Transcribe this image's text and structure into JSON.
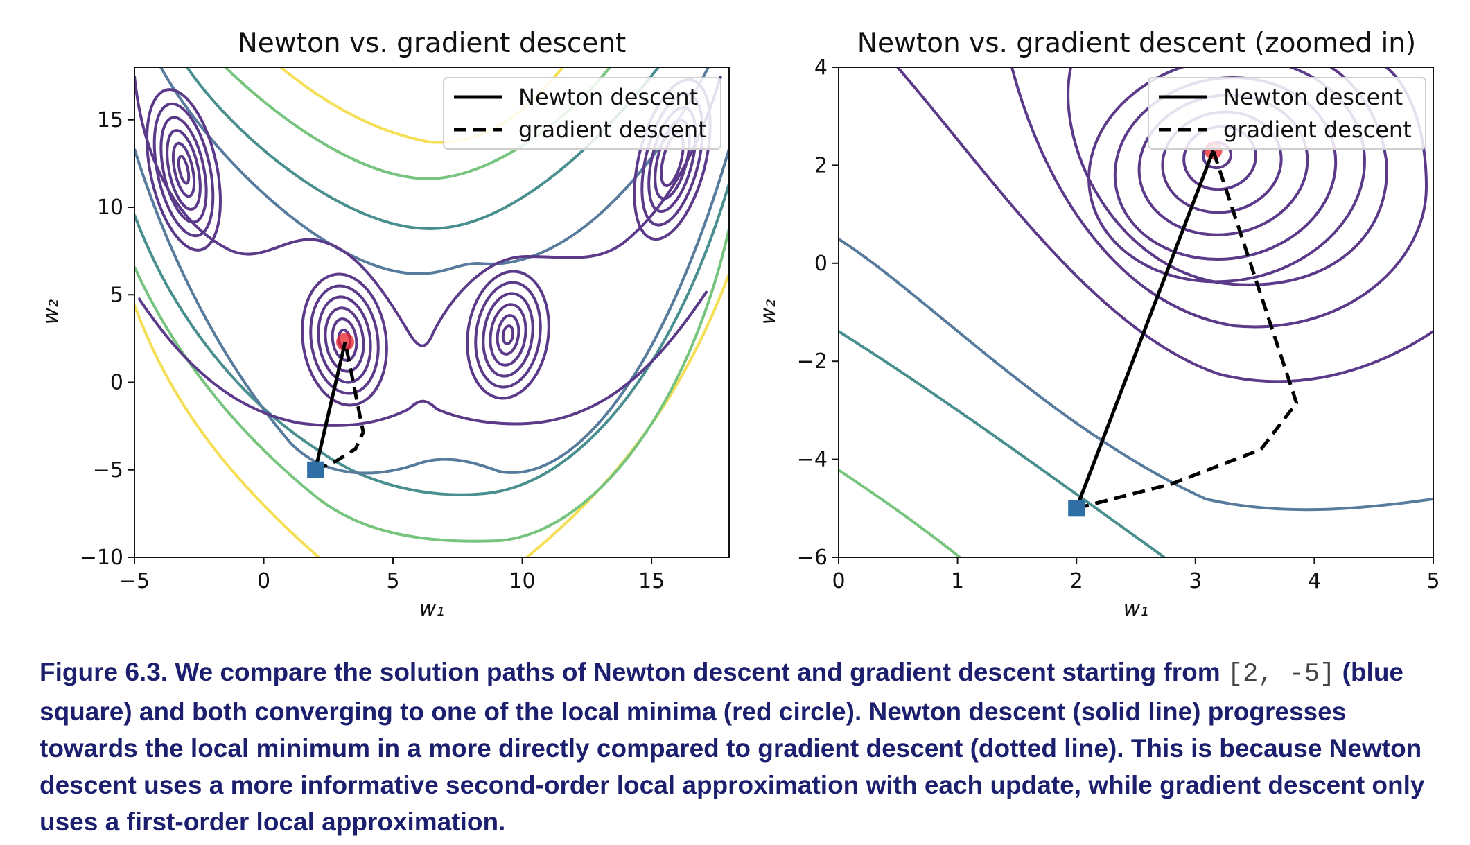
{
  "chart_data": [
    {
      "type": "contour",
      "title": "Newton vs. gradient descent",
      "xlabel": "w₁",
      "ylabel": "w₂",
      "xlim": [
        -5,
        18
      ],
      "ylim": [
        -10,
        18
      ],
      "xticks": [
        "−5",
        "0",
        "5",
        "10",
        "15"
      ],
      "xtick_values": [
        -5,
        0,
        5,
        10,
        15
      ],
      "yticks": [
        "−10",
        "−5",
        "0",
        "5",
        "10",
        "15"
      ],
      "ytick_values": [
        -10,
        -5,
        0,
        5,
        10,
        15
      ],
      "legend": [
        "Newton descent",
        "gradient descent"
      ],
      "legend_position": "upper-right",
      "start": [
        2,
        -5
      ],
      "minimum": [
        3.15,
        2.3
      ],
      "series": [
        {
          "name": "Newton descent",
          "style": "solid",
          "x": [
            2,
            3.15
          ],
          "y": [
            -5,
            2.3
          ]
        },
        {
          "name": "gradient descent",
          "style": "dashed",
          "x": [
            2,
            2.8,
            3.55,
            3.85,
            3.15
          ],
          "y": [
            -5,
            -4.5,
            -3.8,
            -2.85,
            2.3
          ]
        }
      ]
    },
    {
      "type": "contour",
      "title": "Newton vs. gradient descent (zoomed in)",
      "xlabel": "w₁",
      "ylabel": "w₂",
      "xlim": [
        0,
        5
      ],
      "ylim": [
        -6,
        4
      ],
      "xticks": [
        "0",
        "1",
        "2",
        "3",
        "4",
        "5"
      ],
      "xtick_values": [
        0,
        1,
        2,
        3,
        4,
        5
      ],
      "yticks": [
        "−6",
        "−4",
        "−2",
        "0",
        "2",
        "4"
      ],
      "ytick_values": [
        -6,
        -4,
        -2,
        0,
        2,
        4
      ],
      "legend": [
        "Newton descent",
        "gradient descent"
      ],
      "legend_position": "upper-right",
      "start": [
        2,
        -5
      ],
      "minimum": [
        3.15,
        2.3
      ],
      "series": [
        {
          "name": "Newton descent",
          "style": "solid",
          "x": [
            2,
            3.15
          ],
          "y": [
            -5,
            2.3
          ]
        },
        {
          "name": "gradient descent",
          "style": "dashed",
          "x": [
            2,
            2.8,
            3.55,
            3.85,
            3.15
          ],
          "y": [
            -5,
            -4.5,
            -3.8,
            -2.85,
            2.3
          ]
        }
      ]
    }
  ],
  "caption": {
    "before": "Figure 6.3. We compare the solution paths of Newton descent and gradient descent starting from ",
    "code": "[2, -5]",
    "after": " (blue square) and both converging to one of the local minima (red circle). Newton descent (solid line) progresses towards the local minimum in a more directly compared to gradient descent (dotted line). This is because Newton descent uses a more informative second-order local approximation with each update, while gradient descent only uses a first-order local approximation."
  },
  "colors": {
    "contour_levels": [
      "#5b3a8a",
      "#6a4a9a",
      "#577b9c",
      "#4a8f8f",
      "#76c47e",
      "#f4df56"
    ],
    "start_marker": "#2f6fa5",
    "minimum_marker": "#e8212b",
    "path": "#000000"
  }
}
